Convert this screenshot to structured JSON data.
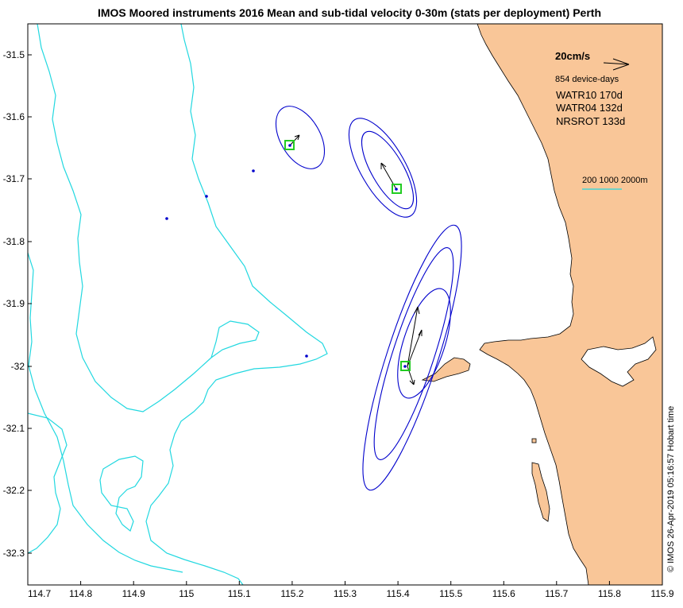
{
  "title": "IMOS Moored instruments 2016 Mean and sub-tidal velocity 0-30m (stats per deployment) Perth",
  "x_ticks": [
    "114.7",
    "114.8",
    "114.9",
    "115",
    "115.1",
    "115.2",
    "115.3",
    "115.4",
    "115.5",
    "115.6",
    "115.7",
    "115.8",
    "115.9"
  ],
  "y_ticks": [
    "-31.5",
    "-31.6",
    "-31.7",
    "-31.8",
    "-31.9",
    "-32",
    "-32.1",
    "-32.2",
    "-32.3"
  ],
  "legend": {
    "scale_label": "20cm/s",
    "device_days": "854 device-days",
    "deployments": [
      "WATR10 170d",
      "WATR04 132d",
      "NRSROT 133d"
    ],
    "contour_label": "200 1000 2000m"
  },
  "credit": "© IMOS 26-Apr-2019 05:16:57 Hobart time",
  "colors": {
    "land": "#f9c698",
    "ellipse": "#0000cc",
    "contour": "#22d8e0",
    "marker": "#22cc22",
    "dot": "#0000cc"
  }
}
